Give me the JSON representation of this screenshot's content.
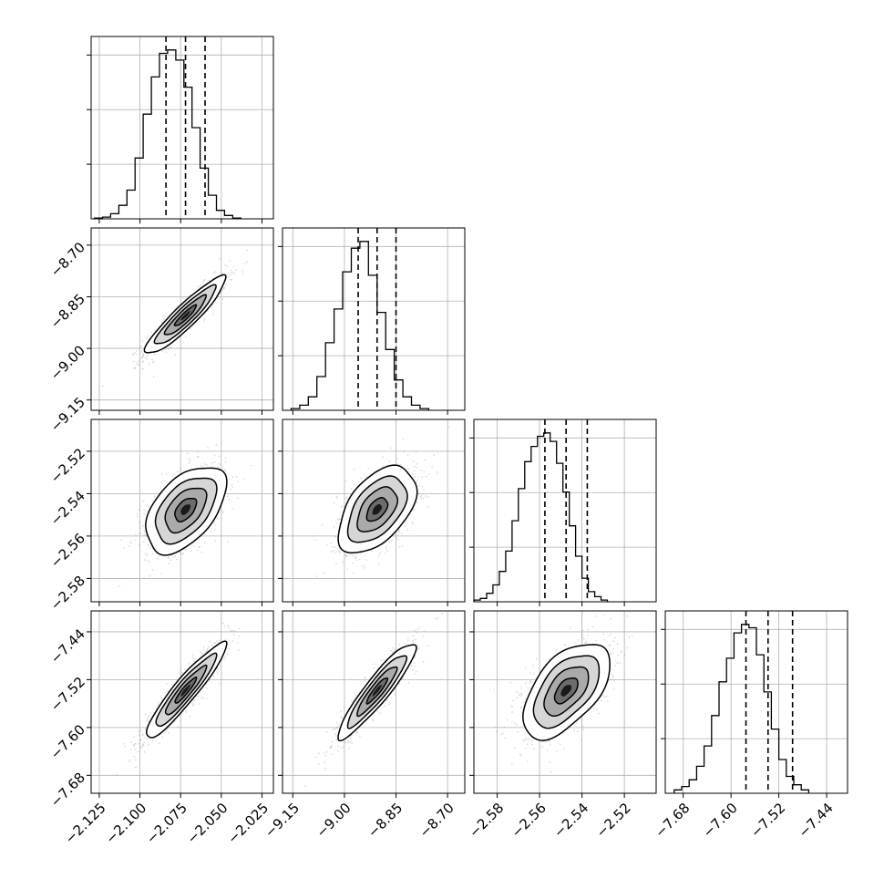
{
  "figure": {
    "background": "#ffffff",
    "axis_color": "#000000",
    "grid_color": "#b0b0b0",
    "scatter_color": "#9a9a9a",
    "hist_color": "#000000"
  },
  "chart_data": {
    "type": "corner",
    "title": "",
    "params": [
      {
        "name": "",
        "range": [
          -2.13,
          -2.018
        ],
        "ticks": [
          -2.125,
          -2.1,
          -2.075,
          -2.05,
          -2.025
        ],
        "tick_labels": [
          "−2.125",
          "−2.100",
          "−2.075",
          "−2.050",
          "−2.025"
        ],
        "quantiles": [
          -2.084,
          -2.072,
          -2.06
        ],
        "hist": {
          "edges_start": -2.128,
          "bin_width": 0.005,
          "counts": [
            0.5,
            1,
            3,
            8,
            17,
            36,
            62,
            84,
            98,
            100,
            94,
            78,
            54,
            30,
            14,
            5,
            2,
            0.5
          ],
          "ymax": 108
        }
      },
      {
        "name": "",
        "range": [
          -9.18,
          -8.65
        ],
        "ticks": [
          -9.15,
          -9.0,
          -8.85,
          -8.7
        ],
        "tick_labels": [
          "−9.15",
          "−9.00",
          "−8.85",
          "−8.70"
        ],
        "quantiles": [
          -8.96,
          -8.905,
          -8.85
        ],
        "hist": {
          "edges_start": -9.155,
          "bin_width": 0.025,
          "counts": [
            1,
            3,
            8,
            20,
            40,
            60,
            82,
            96,
            100,
            80,
            58,
            36,
            18,
            8,
            3,
            1
          ],
          "ymax": 108
        }
      },
      {
        "name": "",
        "range": [
          -2.591,
          -2.505
        ],
        "ticks": [
          -2.58,
          -2.56,
          -2.54,
          -2.52
        ],
        "tick_labels": [
          "−2.58",
          "−2.56",
          "−2.54",
          "−2.52"
        ],
        "quantiles": [
          -2.5575,
          -2.5475,
          -2.5375
        ],
        "hist": {
          "edges_start": -2.591,
          "bin_width": 0.003,
          "counts": [
            1,
            2,
            5,
            10,
            18,
            30,
            48,
            67,
            83,
            92,
            98,
            100,
            95,
            82,
            65,
            45,
            27,
            14,
            6,
            3,
            1
          ],
          "ymax": 108
        }
      },
      {
        "name": "",
        "range": [
          -7.71,
          -7.405
        ],
        "ticks": [
          -7.68,
          -7.6,
          -7.52,
          -7.44
        ],
        "tick_labels": [
          "−7.68",
          "−7.60",
          "−7.52",
          "−7.44"
        ],
        "quantiles": [
          -7.575,
          -7.538,
          -7.497
        ],
        "hist": {
          "edges_start": -7.695,
          "bin_width": 0.0125,
          "counts": [
            2,
            4,
            8,
            16,
            28,
            46,
            66,
            80,
            95,
            100,
            98,
            82,
            60,
            38,
            20,
            10,
            5,
            2
          ],
          "ymax": 108
        }
      }
    ],
    "correlations": {
      "1-0": 0.92,
      "2-0": 0.5,
      "2-1": 0.5,
      "3-0": 0.93,
      "3-1": 0.92,
      "3-2": 0.55
    },
    "contour_levels": [
      "0.5-sigma",
      "1-sigma",
      "1.5-sigma",
      "2-sigma"
    ],
    "grid": true,
    "legend": "none"
  }
}
